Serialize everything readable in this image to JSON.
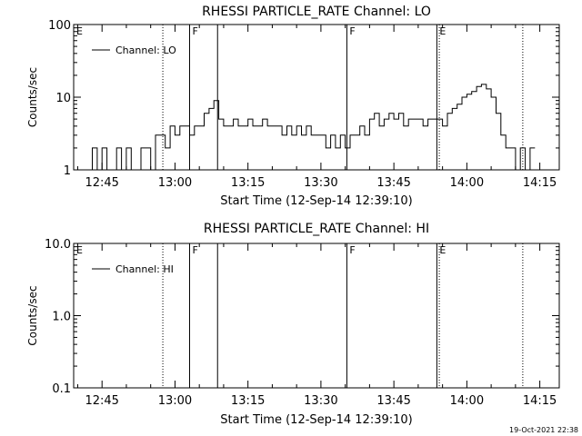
{
  "chart_data": [
    {
      "type": "line",
      "title": "RHESSI PARTICLE_RATE Channel: LO",
      "xlabel": "Start Time (12-Sep-14 12:39:10)",
      "ylabel": "Counts/sec",
      "yscale": "log",
      "ylim": [
        1,
        100
      ],
      "xlim": [
        "12:39:10",
        "14:19:00"
      ],
      "x_ticks": [
        "12:45",
        "13:00",
        "13:15",
        "13:30",
        "13:45",
        "14:00",
        "14:15"
      ],
      "y_ticks": [
        "1",
        "10",
        "100"
      ],
      "legend": {
        "position": "top-left",
        "entries": [
          "Channel: LO"
        ]
      },
      "series": [
        {
          "name": "Channel: LO",
          "x": [
            "12:42",
            "12:43",
            "12:44",
            "12:45",
            "12:46",
            "12:47",
            "12:48",
            "12:49",
            "12:50",
            "12:51",
            "12:52",
            "12:53",
            "12:54",
            "12:55",
            "12:56",
            "12:57",
            "12:58",
            "12:59",
            "13:00",
            "13:01",
            "13:02",
            "13:03",
            "13:04",
            "13:05",
            "13:06",
            "13:07",
            "13:08",
            "13:09",
            "13:10",
            "13:11",
            "13:12",
            "13:13",
            "13:14",
            "13:15",
            "13:16",
            "13:17",
            "13:18",
            "13:19",
            "13:20",
            "13:21",
            "13:22",
            "13:23",
            "13:24",
            "13:25",
            "13:26",
            "13:27",
            "13:28",
            "13:29",
            "13:30",
            "13:31",
            "13:32",
            "13:33",
            "13:34",
            "13:35",
            "13:36",
            "13:37",
            "13:38",
            "13:39",
            "13:40",
            "13:41",
            "13:42",
            "13:43",
            "13:44",
            "13:45",
            "13:46",
            "13:47",
            "13:48",
            "13:49",
            "13:50",
            "13:51",
            "13:52",
            "13:53",
            "13:54",
            "13:55",
            "13:56",
            "13:57",
            "13:58",
            "13:59",
            "14:00",
            "14:01",
            "14:02",
            "14:03",
            "14:04",
            "14:05",
            "14:06",
            "14:07",
            "14:08",
            "14:09",
            "14:10",
            "14:11",
            "14:12",
            "14:13"
          ],
          "y": [
            1,
            2,
            1,
            2,
            1,
            1,
            2,
            1,
            2,
            1,
            1,
            2,
            2,
            1,
            3,
            3,
            2,
            4,
            3,
            4,
            4,
            3,
            4,
            4,
            6,
            7,
            9,
            5,
            4,
            4,
            5,
            4,
            4,
            5,
            4,
            4,
            5,
            4,
            4,
            4,
            3,
            4,
            3,
            4,
            3,
            4,
            3,
            3,
            3,
            2,
            3,
            2,
            3,
            2,
            3,
            3,
            4,
            3,
            5,
            6,
            4,
            5,
            6,
            5,
            6,
            4,
            5,
            5,
            5,
            4,
            5,
            5,
            5,
            4,
            6,
            7,
            8,
            10,
            11,
            12,
            14,
            15,
            13,
            10,
            6,
            3,
            2,
            2,
            1,
            2,
            1,
            2
          ]
        }
      ],
      "annotations": [
        {
          "label": "E",
          "x": "12:39:10",
          "style": "dotted"
        },
        {
          "label": "",
          "x": "12:57:30",
          "style": "dotted"
        },
        {
          "label": "F",
          "x": "13:03:00",
          "style": "solid"
        },
        {
          "label": "",
          "x": "13:08:45",
          "style": "solid"
        },
        {
          "label": "F",
          "x": "13:35:20",
          "style": "solid"
        },
        {
          "label": "E",
          "x": "13:53:50",
          "style": "solid"
        },
        {
          "label": "",
          "x": "13:54:20",
          "style": "dotted"
        },
        {
          "label": "",
          "x": "14:11:30",
          "style": "dotted"
        }
      ]
    },
    {
      "type": "line",
      "title": "RHESSI PARTICLE_RATE Channel: HI",
      "xlabel": "Start Time (12-Sep-14 12:39:10)",
      "ylabel": "Counts/sec",
      "yscale": "log",
      "ylim": [
        0.1,
        10
      ],
      "xlim": [
        "12:39:10",
        "14:19:00"
      ],
      "x_ticks": [
        "12:45",
        "13:00",
        "13:15",
        "13:30",
        "13:45",
        "14:00",
        "14:15"
      ],
      "y_ticks": [
        "0.1",
        "1.0",
        "10.0"
      ],
      "legend": {
        "position": "top-left",
        "entries": [
          "Channel: HI"
        ]
      },
      "series": [
        {
          "name": "Channel: HI",
          "x": [],
          "y": []
        }
      ],
      "annotations": [
        {
          "label": "E",
          "x": "12:39:10",
          "style": "dotted"
        },
        {
          "label": "",
          "x": "12:57:30",
          "style": "dotted"
        },
        {
          "label": "F",
          "x": "13:03:00",
          "style": "solid"
        },
        {
          "label": "",
          "x": "13:08:45",
          "style": "solid"
        },
        {
          "label": "F",
          "x": "13:35:20",
          "style": "solid"
        },
        {
          "label": "E",
          "x": "13:53:50",
          "style": "solid"
        },
        {
          "label": "",
          "x": "13:54:20",
          "style": "dotted"
        },
        {
          "label": "",
          "x": "14:11:30",
          "style": "dotted"
        }
      ]
    }
  ],
  "footer": {
    "timestamp": "19-Oct-2021 22:38"
  }
}
